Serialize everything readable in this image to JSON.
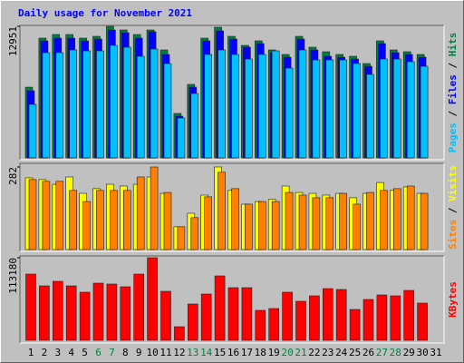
{
  "chart_data": [
    {
      "type": "bar",
      "title": "Daily usage for November 2021",
      "separator": " / ",
      "ylim": [
        0,
        12951
      ],
      "yticks": [
        12951
      ],
      "series": [
        {
          "name": "Pages",
          "color": "#00c0ff",
          "values": [
            5269,
            10359,
            10359,
            10627,
            10537,
            10537,
            11073,
            10895,
            10002,
            10716,
            9287,
            3929,
            6340,
            10180,
            10627,
            10180,
            9734,
            10180,
            10537,
            8841,
            10627,
            9644,
            9644,
            9644,
            9287,
            8216,
            9734,
            9734,
            9466,
            9019,
            null
          ]
        },
        {
          "name": "Files",
          "color": "#0000ff",
          "values": [
            6608,
            11520,
            11788,
            11788,
            11520,
            11698,
            12591,
            12323,
            11788,
            12413,
            10180,
            4108,
            6965,
            11520,
            12502,
            11698,
            10895,
            11252,
            10359,
            9912,
            11698,
            10627,
            10002,
            9912,
            9734,
            9019,
            11252,
            10359,
            10180,
            9912,
            null
          ]
        },
        {
          "name": "Hits",
          "color": "#008040",
          "values": [
            6965,
            11788,
            12145,
            12145,
            11788,
            11966,
            12951,
            12591,
            12145,
            12591,
            10627,
            4376,
            7233,
            11788,
            12859,
            11966,
            11073,
            11520,
            10627,
            10180,
            11966,
            10895,
            10448,
            10180,
            10002,
            9287,
            11520,
            10627,
            10448,
            10180,
            null
          ]
        }
      ]
    },
    {
      "type": "bar",
      "separator": " / ",
      "ylim": [
        0,
        282
      ],
      "yticks": [
        282
      ],
      "series": [
        {
          "name": "Sites",
          "color": "#ff8000",
          "values": [
            239,
            233,
            233,
            202,
            164,
            202,
            202,
            202,
            248,
            282,
            195,
            78,
            109,
            180,
            264,
            208,
            155,
            164,
            164,
            195,
            186,
            177,
            177,
            192,
            155,
            195,
            202,
            208,
            217,
            192,
            null
          ]
        },
        {
          "name": "Visits",
          "color": "#ffff00",
          "values": [
            245,
            239,
            223,
            248,
            192,
            208,
            223,
            217,
            223,
            248,
            192,
            78,
            124,
            186,
            282,
            202,
            155,
            164,
            171,
            217,
            195,
            192,
            186,
            192,
            177,
            192,
            229,
            202,
            214,
            192,
            null
          ]
        }
      ]
    },
    {
      "type": "bar",
      "ylim": [
        0,
        113180
      ],
      "yticks": [
        113180
      ],
      "categories": [
        "1",
        "2",
        "3",
        "4",
        "5",
        "6",
        "7",
        "8",
        "9",
        "10",
        "11",
        "12",
        "13",
        "14",
        "15",
        "16",
        "17",
        "18",
        "19",
        "20",
        "21",
        "22",
        "23",
        "24",
        "25",
        "26",
        "27",
        "28",
        "29",
        "30",
        "31"
      ],
      "category_colors": [
        "#000000",
        "#000000",
        "#000000",
        "#000000",
        "#000000",
        "#008040",
        "#008040",
        "#000000",
        "#000000",
        "#000000",
        "#000000",
        "#000000",
        "#008040",
        "#008040",
        "#000000",
        "#000000",
        "#000000",
        "#000000",
        "#000000",
        "#008040",
        "#008040",
        "#000000",
        "#000000",
        "#000000",
        "#000000",
        "#000000",
        "#008040",
        "#008040",
        "#000000",
        "#000000",
        "#000000"
      ],
      "series": [
        {
          "name": "KBytes",
          "color": "#ff0000",
          "values": [
            90790,
            74622,
            80841,
            74622,
            65916,
            78353,
            77109,
            73378,
            90790,
            113180,
            67160,
            18656,
            49748,
            63429,
            88303,
            72135,
            72135,
            41042,
            43530,
            65916,
            53479,
            60941,
            70891,
            69647,
            42286,
            55967,
            62185,
            60941,
            68404,
            50992,
            null
          ]
        }
      ]
    }
  ]
}
